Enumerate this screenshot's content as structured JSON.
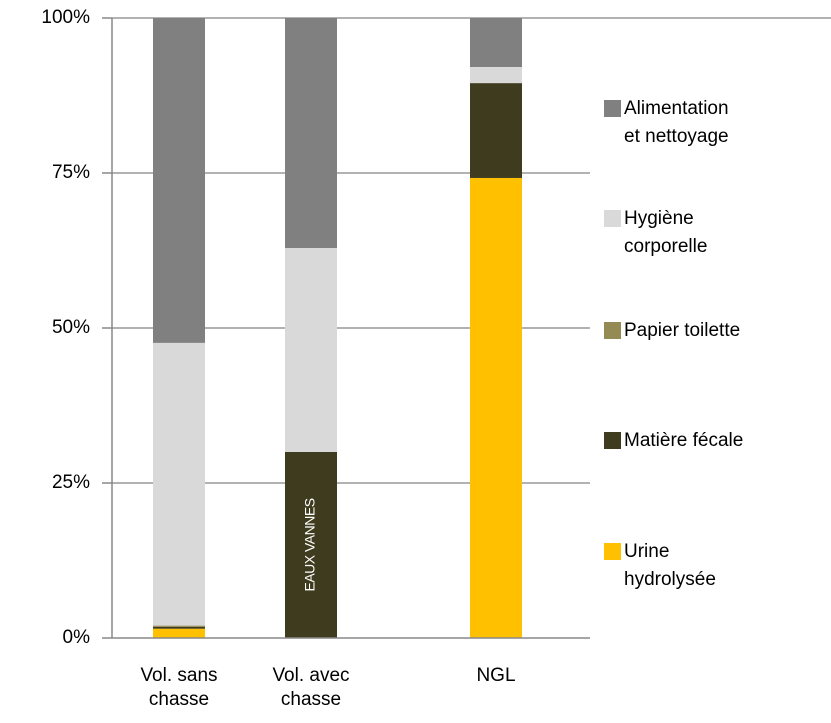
{
  "chart_data": {
    "type": "bar",
    "stacked": true,
    "categories": [
      "Vol. sans chasse",
      "Vol. avec chasse",
      "NGL"
    ],
    "series": [
      {
        "name": "Urine hydrolysée",
        "color": "#ffc000",
        "values": [
          1.5,
          0,
          74.2
        ]
      },
      {
        "name": "Matière fécale",
        "color": "#3f3b1e",
        "values": [
          0.3,
          30,
          15.3
        ]
      },
      {
        "name": "Papier toilette",
        "color": "#948a54",
        "values": [
          0.2,
          0,
          0
        ]
      },
      {
        "name": "Hygiène corporelle",
        "color": "#d9d9d9",
        "values": [
          45.6,
          32.9,
          2.6
        ]
      },
      {
        "name": "Alimentation et nettoyage",
        "color": "#808080",
        "values": [
          52.4,
          37.1,
          7.9
        ]
      }
    ],
    "annotation": "EAUX VANNES",
    "ylim": [
      0,
      100
    ],
    "yticks": [
      {
        "value": 0,
        "label": "0%"
      },
      {
        "value": 25,
        "label": "25%"
      },
      {
        "value": 50,
        "label": "50%"
      },
      {
        "value": 75,
        "label": "75%"
      },
      {
        "value": 100,
        "label": "100%"
      }
    ],
    "grid": true,
    "legend": "right"
  }
}
